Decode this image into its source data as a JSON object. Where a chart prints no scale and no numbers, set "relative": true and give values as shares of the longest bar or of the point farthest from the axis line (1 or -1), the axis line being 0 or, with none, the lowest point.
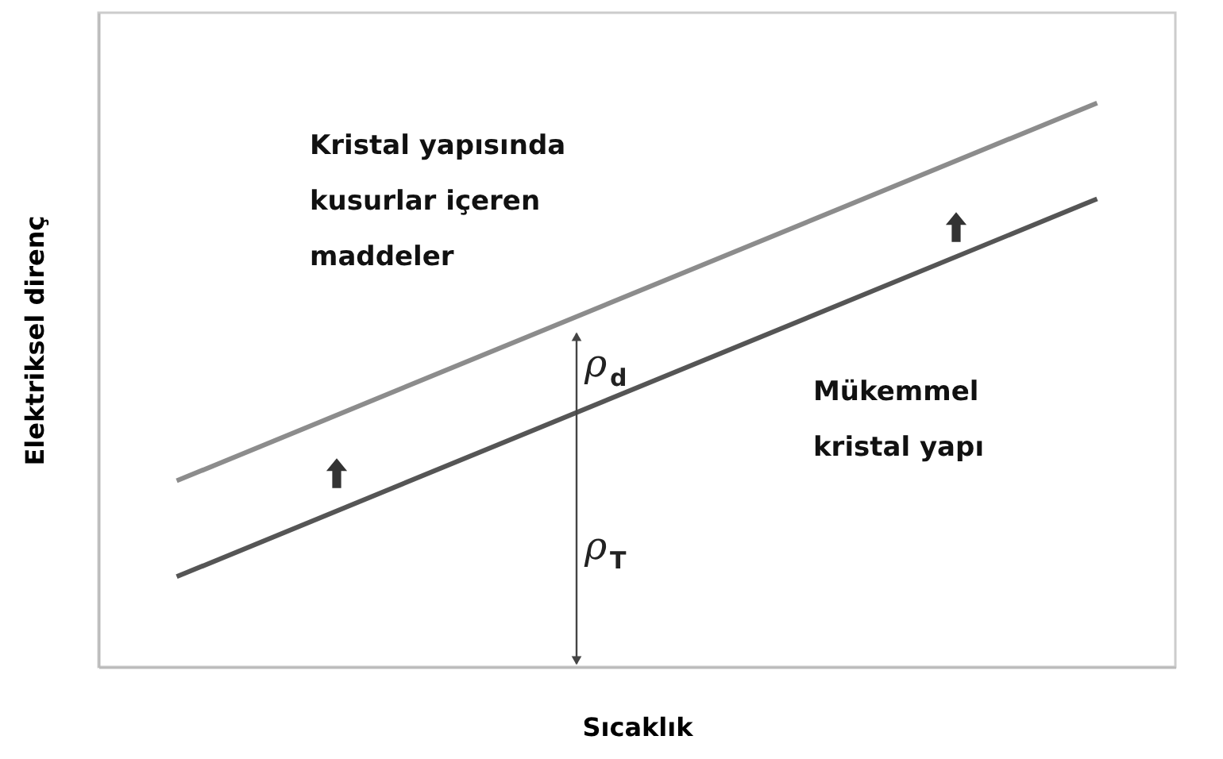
{
  "chart_data": {
    "type": "line",
    "relative": true,
    "xlabel": "Sıcaklık",
    "ylabel": "Elektriksel direnç",
    "categories": [
      null,
      null
    ],
    "series": [
      {
        "color": "#8c8c8c",
        "values": [
          0.33,
          1.0
        ]
      },
      {
        "color": "#555555",
        "values": [
          0.16,
          0.83
        ]
      }
    ],
    "grid": false,
    "annotations": [
      "Kristal yapısında\nkusurlar içeren\nmaddeler",
      "Mükemmel\nkristal yapı",
      "ρ$_{d}$",
      "ρ$_{T}$"
    ]
  }
}
